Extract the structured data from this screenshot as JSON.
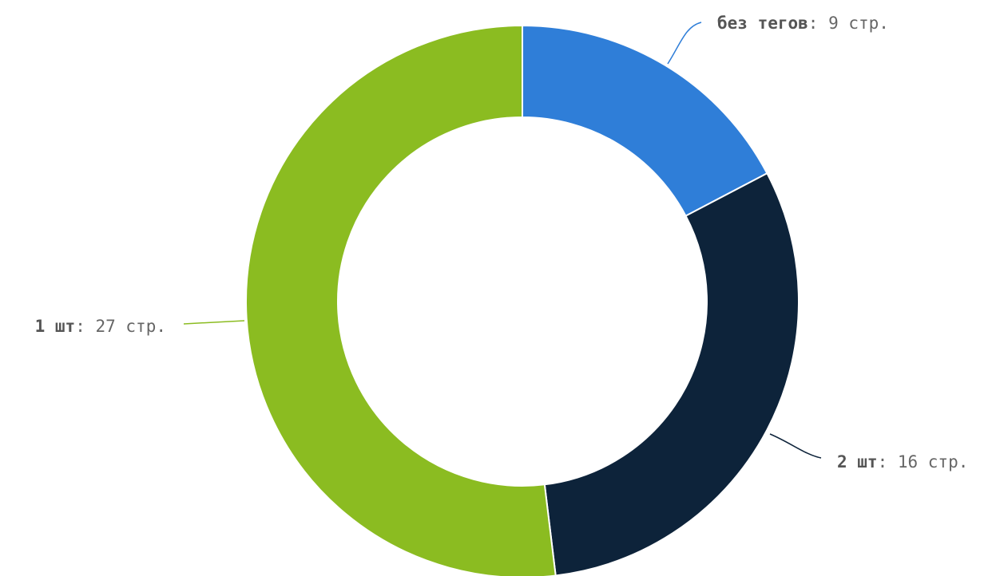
{
  "chart_data": {
    "type": "pie",
    "variant": "donut",
    "title": "",
    "slices": [
      {
        "label": "без тегов",
        "value": 9,
        "unit_text": "стр.",
        "color": "#2f7ed8"
      },
      {
        "label": "2 шт",
        "value": 16,
        "unit_text": "стр.",
        "color": "#0d233a"
      },
      {
        "label": "1 шт",
        "value": 27,
        "unit_text": "стр.",
        "color": "#8bbc21"
      }
    ],
    "legend": "none",
    "data_labels": "outside with leader lines"
  }
}
